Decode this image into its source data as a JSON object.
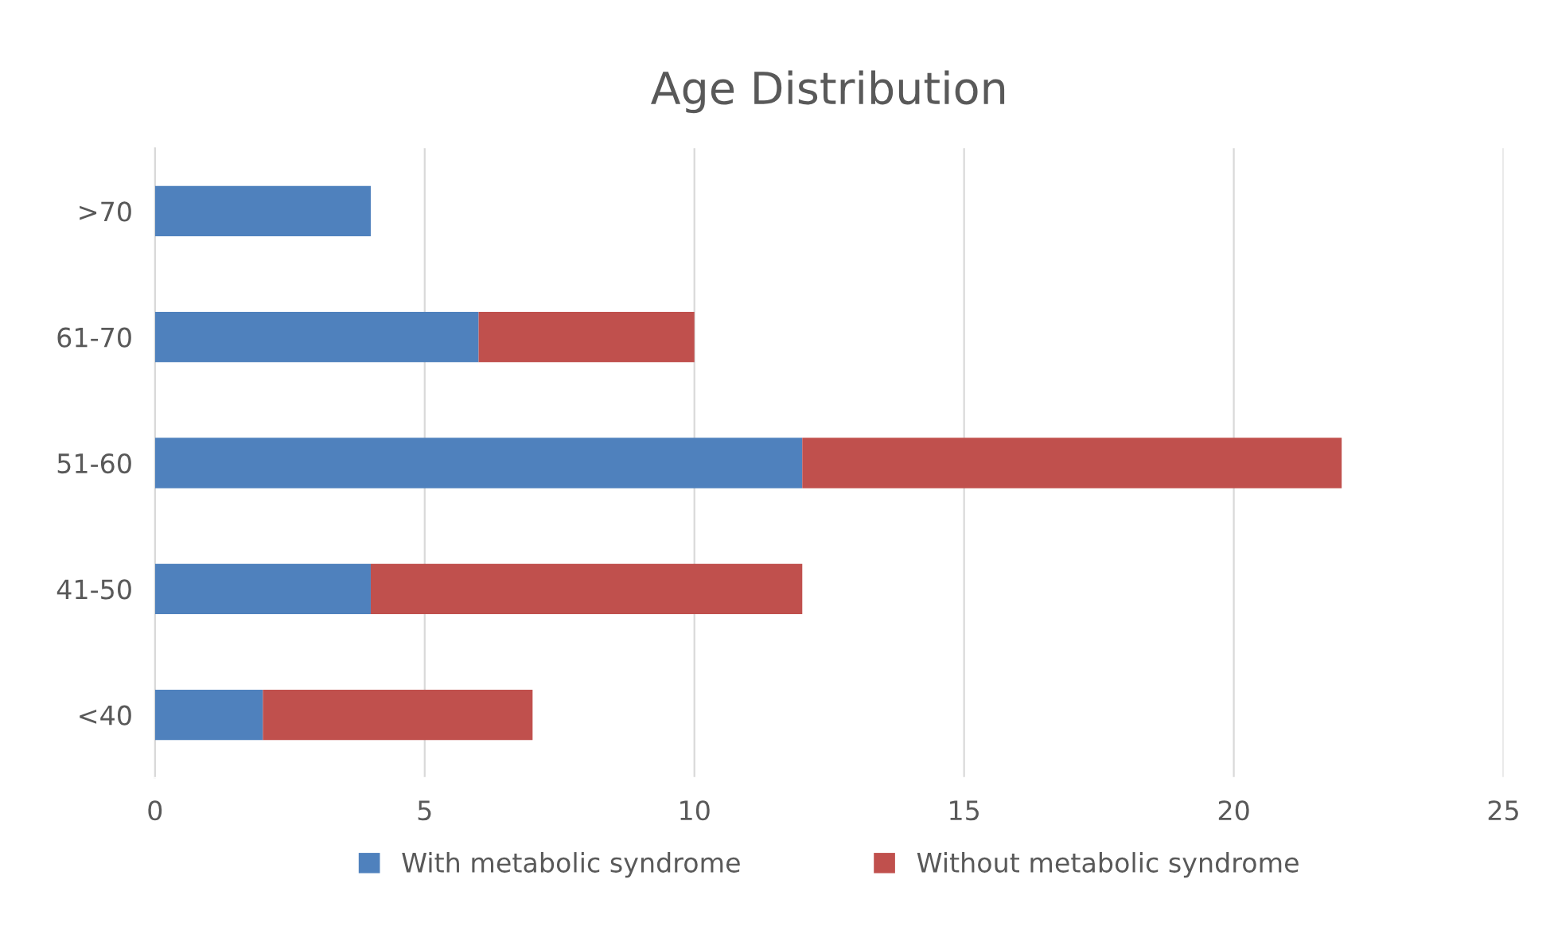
{
  "chart_data": {
    "type": "bar",
    "orientation": "horizontal",
    "stacked": true,
    "title": "Age Distribution",
    "categories": [
      ">70",
      "61-70",
      "51-60",
      "41-50",
      "<40"
    ],
    "series": [
      {
        "name": "With metabolic syndrome",
        "color": "#4f81bd",
        "values": [
          4,
          6,
          12,
          4,
          2
        ]
      },
      {
        "name": "Without metabolic syndrome",
        "color": "#c0504d",
        "values": [
          null,
          4,
          10,
          8,
          5
        ]
      }
    ],
    "xlim": [
      0,
      25
    ],
    "xticks": [
      0,
      5,
      10,
      15,
      20,
      25
    ],
    "grid": "x",
    "legend": "bottom"
  }
}
